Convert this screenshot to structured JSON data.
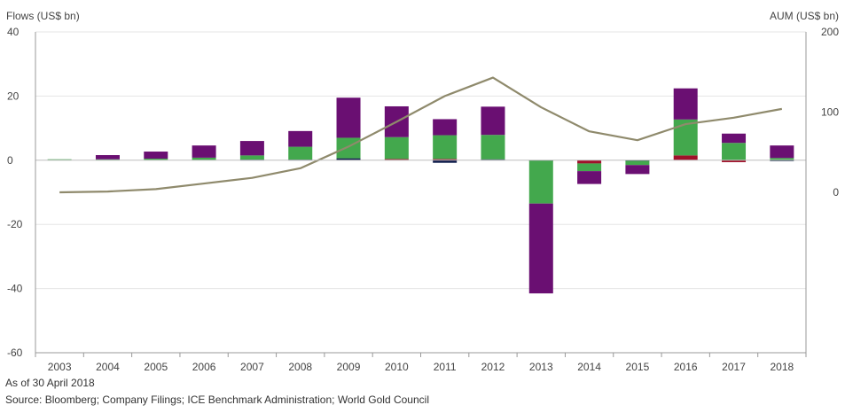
{
  "chart_data": {
    "type": "bar",
    "stacked": true,
    "left_axis_title": "Flows (US$ bn)",
    "right_axis_title": "AUM (US$ bn)",
    "categories": [
      "2003",
      "2004",
      "2005",
      "2006",
      "2007",
      "2008",
      "2009",
      "2010",
      "2011",
      "2012",
      "2013",
      "2014",
      "2015",
      "2016",
      "2017",
      "2018"
    ],
    "ylim_left": [
      -60,
      40
    ],
    "yticks_left": [
      "40",
      "20",
      "0",
      "-20",
      "-40",
      "-60"
    ],
    "ylim_right": [
      -200,
      200
    ],
    "yticks_right": [
      "200",
      "100",
      "0"
    ],
    "grid": true,
    "series": [
      {
        "color": "#a0102a",
        "values": [
          0,
          0,
          0,
          0,
          0,
          0,
          0,
          0.4,
          0.4,
          0,
          0,
          -1.0,
          0,
          1.5,
          -0.6,
          0
        ]
      },
      {
        "color": "#0d1a4a",
        "values": [
          0,
          0,
          0,
          0,
          0.2,
          0.2,
          0.6,
          0,
          -0.8,
          0.3,
          -0.1,
          0,
          -0.2,
          0,
          0,
          -0.2
        ]
      },
      {
        "color": "#43a84d",
        "values": [
          0.3,
          0.3,
          0.5,
          0.8,
          1.3,
          4.0,
          6.4,
          6.8,
          7.4,
          7.6,
          -13.4,
          -2.4,
          -1.3,
          11.2,
          5.4,
          0.7
        ]
      },
      {
        "color": "#6a0f72",
        "values": [
          0,
          1.3,
          2.2,
          3.8,
          4.5,
          4.9,
          12.5,
          9.6,
          5.0,
          8.8,
          -28.0,
          -4.0,
          -2.8,
          9.7,
          2.9,
          3.9
        ]
      }
    ],
    "line_series": {
      "axis": "right",
      "color": "#8f8a6c",
      "values": [
        0,
        1,
        4,
        11,
        18,
        30,
        57,
        88,
        120,
        143,
        106,
        76,
        65,
        85,
        93,
        104
      ]
    }
  },
  "footer": {
    "note": "As of 30 April 2018",
    "source": "Source: Bloomberg; Company Filings; ICE Benchmark Administration; World Gold Council"
  }
}
